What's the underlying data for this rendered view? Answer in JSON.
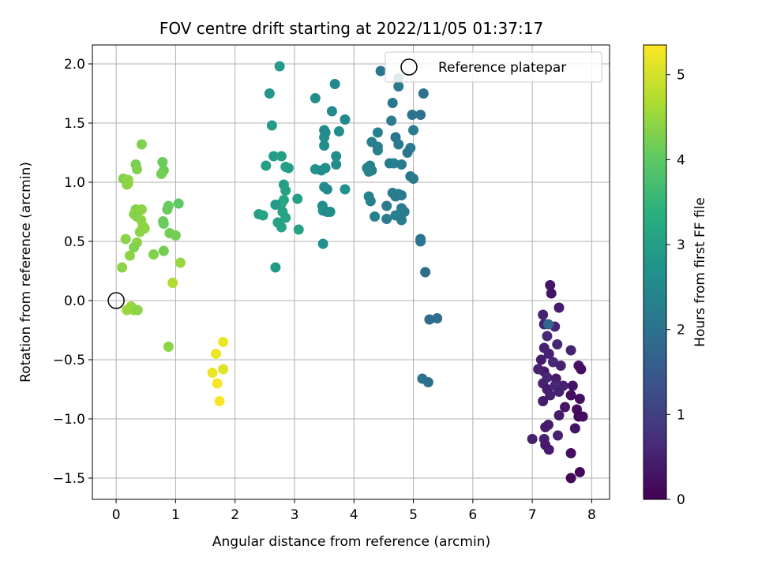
{
  "chart_data": {
    "type": "scatter",
    "title": "FOV centre drift starting at 2022/11/05 01:37:17",
    "xlabel": "Angular distance from reference (arcmin)",
    "ylabel": "Rotation from reference (arcmin)",
    "xlim": [
      -0.4,
      8.3
    ],
    "ylim": [
      -1.68,
      2.16
    ],
    "xticks": [
      0,
      1,
      2,
      3,
      4,
      5,
      6,
      7,
      8
    ],
    "yticks": [
      -1.5,
      -1.0,
      -0.5,
      0.0,
      0.5,
      1.0,
      1.5,
      2.0
    ],
    "ytick_labels": [
      "−1.5",
      "−1.0",
      "−0.5",
      "0.0",
      "0.5",
      "1.0",
      "1.5",
      "2.0"
    ],
    "grid": true,
    "legend": {
      "position": "top-right",
      "entries": [
        "Reference platepar"
      ]
    },
    "reference_point": {
      "x": 0,
      "y": 0
    },
    "colorbar": {
      "label": "Hours from first FF file",
      "colormap": "viridis",
      "range": [
        0,
        5.35
      ],
      "ticks": [
        0,
        1,
        2,
        3,
        4,
        5
      ]
    },
    "points": [
      {
        "x": 7.3,
        "y": 0.13,
        "h": 0.3
      },
      {
        "x": 7.32,
        "y": 0.06,
        "h": 0.3
      },
      {
        "x": 7.45,
        "y": -0.06,
        "h": 0.4
      },
      {
        "x": 7.18,
        "y": -0.12,
        "h": 0.5
      },
      {
        "x": 7.38,
        "y": -0.22,
        "h": 0.6
      },
      {
        "x": 7.2,
        "y": -0.2,
        "h": 0.5
      },
      {
        "x": 7.25,
        "y": -0.3,
        "h": 0.6
      },
      {
        "x": 7.2,
        "y": -0.4,
        "h": 0.5
      },
      {
        "x": 7.42,
        "y": -0.37,
        "h": 0.6
      },
      {
        "x": 7.65,
        "y": -0.42,
        "h": 0.5
      },
      {
        "x": 7.15,
        "y": -0.5,
        "h": 0.4
      },
      {
        "x": 7.28,
        "y": -0.45,
        "h": 0.5
      },
      {
        "x": 7.35,
        "y": -0.52,
        "h": 0.6
      },
      {
        "x": 7.48,
        "y": -0.55,
        "h": 0.5
      },
      {
        "x": 7.2,
        "y": -0.6,
        "h": 0.4
      },
      {
        "x": 7.1,
        "y": -0.58,
        "h": 0.5
      },
      {
        "x": 7.25,
        "y": -0.65,
        "h": 0.6
      },
      {
        "x": 7.4,
        "y": -0.66,
        "h": 0.4
      },
      {
        "x": 7.52,
        "y": -0.72,
        "h": 0.5
      },
      {
        "x": 7.78,
        "y": -0.55,
        "h": 0.3
      },
      {
        "x": 7.82,
        "y": -0.58,
        "h": 0.2
      },
      {
        "x": 7.18,
        "y": -0.7,
        "h": 0.5
      },
      {
        "x": 7.25,
        "y": -0.75,
        "h": 0.4
      },
      {
        "x": 7.38,
        "y": -0.72,
        "h": 0.6
      },
      {
        "x": 7.68,
        "y": -0.72,
        "h": 0.3
      },
      {
        "x": 7.45,
        "y": -0.77,
        "h": 0.5
      },
      {
        "x": 7.3,
        "y": -0.8,
        "h": 0.5
      },
      {
        "x": 7.18,
        "y": -0.85,
        "h": 0.4
      },
      {
        "x": 7.65,
        "y": -0.8,
        "h": 0.2
      },
      {
        "x": 7.8,
        "y": -0.83,
        "h": 0.2
      },
      {
        "x": 7.55,
        "y": -0.9,
        "h": 0.3
      },
      {
        "x": 7.45,
        "y": -0.97,
        "h": 0.4
      },
      {
        "x": 7.75,
        "y": -0.92,
        "h": 0.2
      },
      {
        "x": 7.78,
        "y": -0.98,
        "h": 0.1
      },
      {
        "x": 7.85,
        "y": -0.98,
        "h": 0.2
      },
      {
        "x": 7.27,
        "y": -1.05,
        "h": 0.4
      },
      {
        "x": 7.22,
        "y": -1.07,
        "h": 0.4
      },
      {
        "x": 7.72,
        "y": -1.08,
        "h": 0.3
      },
      {
        "x": 7.43,
        "y": -1.14,
        "h": 0.5
      },
      {
        "x": 7.0,
        "y": -1.17,
        "h": 0.5
      },
      {
        "x": 7.2,
        "y": -1.17,
        "h": 0.5
      },
      {
        "x": 7.22,
        "y": -1.22,
        "h": 0.4
      },
      {
        "x": 7.28,
        "y": -1.26,
        "h": 0.4
      },
      {
        "x": 7.65,
        "y": -1.29,
        "h": 0.2
      },
      {
        "x": 7.8,
        "y": -1.45,
        "h": 0.1
      },
      {
        "x": 7.65,
        "y": -1.5,
        "h": 0.1
      },
      {
        "x": 7.27,
        "y": -0.2,
        "h": 1.8
      },
      {
        "x": 4.45,
        "y": 1.94,
        "h": 2.1
      },
      {
        "x": 4.75,
        "y": 1.88,
        "h": 2.0
      },
      {
        "x": 4.75,
        "y": 1.81,
        "h": 2.2
      },
      {
        "x": 5.17,
        "y": 1.75,
        "h": 2.0
      },
      {
        "x": 4.65,
        "y": 1.67,
        "h": 2.1
      },
      {
        "x": 4.98,
        "y": 1.57,
        "h": 2.1
      },
      {
        "x": 5.12,
        "y": 1.57,
        "h": 2.0
      },
      {
        "x": 4.63,
        "y": 1.52,
        "h": 2.2
      },
      {
        "x": 5.0,
        "y": 1.44,
        "h": 2.2
      },
      {
        "x": 4.4,
        "y": 1.42,
        "h": 2.3
      },
      {
        "x": 4.7,
        "y": 1.38,
        "h": 2.1
      },
      {
        "x": 4.3,
        "y": 1.34,
        "h": 2.3
      },
      {
        "x": 4.75,
        "y": 1.32,
        "h": 2.2
      },
      {
        "x": 4.4,
        "y": 1.3,
        "h": 2.2
      },
      {
        "x": 4.95,
        "y": 1.29,
        "h": 2.2
      },
      {
        "x": 4.4,
        "y": 1.27,
        "h": 2.3
      },
      {
        "x": 4.9,
        "y": 1.25,
        "h": 2.1
      },
      {
        "x": 4.6,
        "y": 1.16,
        "h": 2.2
      },
      {
        "x": 4.67,
        "y": 1.16,
        "h": 2.3
      },
      {
        "x": 4.8,
        "y": 1.15,
        "h": 2.2
      },
      {
        "x": 4.27,
        "y": 1.14,
        "h": 2.3
      },
      {
        "x": 4.22,
        "y": 1.12,
        "h": 2.4
      },
      {
        "x": 4.3,
        "y": 1.1,
        "h": 2.3
      },
      {
        "x": 4.25,
        "y": 1.09,
        "h": 2.4
      },
      {
        "x": 4.95,
        "y": 1.05,
        "h": 2.1
      },
      {
        "x": 5.0,
        "y": 1.03,
        "h": 2.2
      },
      {
        "x": 4.65,
        "y": 0.91,
        "h": 2.2
      },
      {
        "x": 4.75,
        "y": 0.9,
        "h": 2.3
      },
      {
        "x": 4.7,
        "y": 0.88,
        "h": 2.2
      },
      {
        "x": 4.8,
        "y": 0.89,
        "h": 2.2
      },
      {
        "x": 4.25,
        "y": 0.88,
        "h": 2.3
      },
      {
        "x": 4.28,
        "y": 0.84,
        "h": 2.3
      },
      {
        "x": 4.55,
        "y": 0.8,
        "h": 2.2
      },
      {
        "x": 4.8,
        "y": 0.78,
        "h": 2.2
      },
      {
        "x": 4.85,
        "y": 0.75,
        "h": 2.2
      },
      {
        "x": 4.7,
        "y": 0.72,
        "h": 2.3
      },
      {
        "x": 4.35,
        "y": 0.71,
        "h": 2.3
      },
      {
        "x": 4.55,
        "y": 0.69,
        "h": 2.2
      },
      {
        "x": 4.8,
        "y": 0.68,
        "h": 2.2
      },
      {
        "x": 5.12,
        "y": 0.52,
        "h": 2.0
      },
      {
        "x": 5.12,
        "y": 0.5,
        "h": 2.1
      },
      {
        "x": 5.2,
        "y": 0.24,
        "h": 1.9
      },
      {
        "x": 5.4,
        "y": -0.15,
        "h": 1.9
      },
      {
        "x": 5.27,
        "y": -0.16,
        "h": 1.9
      },
      {
        "x": 5.15,
        "y": -0.66,
        "h": 2.0
      },
      {
        "x": 5.25,
        "y": -0.69,
        "h": 2.0
      },
      {
        "x": 2.75,
        "y": 1.98,
        "h": 2.9
      },
      {
        "x": 3.68,
        "y": 1.83,
        "h": 2.5
      },
      {
        "x": 2.58,
        "y": 1.75,
        "h": 2.8
      },
      {
        "x": 3.35,
        "y": 1.71,
        "h": 2.6
      },
      {
        "x": 3.63,
        "y": 1.6,
        "h": 2.5
      },
      {
        "x": 3.85,
        "y": 1.53,
        "h": 2.5
      },
      {
        "x": 2.62,
        "y": 1.48,
        "h": 2.9
      },
      {
        "x": 3.5,
        "y": 1.44,
        "h": 2.6
      },
      {
        "x": 3.52,
        "y": 1.42,
        "h": 2.5
      },
      {
        "x": 3.75,
        "y": 1.43,
        "h": 2.6
      },
      {
        "x": 3.5,
        "y": 1.38,
        "h": 2.6
      },
      {
        "x": 3.5,
        "y": 1.31,
        "h": 2.6
      },
      {
        "x": 2.65,
        "y": 1.22,
        "h": 2.9
      },
      {
        "x": 2.78,
        "y": 1.22,
        "h": 3.0
      },
      {
        "x": 3.7,
        "y": 1.22,
        "h": 2.6
      },
      {
        "x": 3.7,
        "y": 1.15,
        "h": 2.6
      },
      {
        "x": 2.52,
        "y": 1.14,
        "h": 3.0
      },
      {
        "x": 2.85,
        "y": 1.13,
        "h": 3.1
      },
      {
        "x": 2.9,
        "y": 1.12,
        "h": 3.0
      },
      {
        "x": 3.35,
        "y": 1.11,
        "h": 2.7
      },
      {
        "x": 3.45,
        "y": 1.1,
        "h": 2.6
      },
      {
        "x": 3.52,
        "y": 1.12,
        "h": 2.6
      },
      {
        "x": 2.82,
        "y": 0.98,
        "h": 3.0
      },
      {
        "x": 3.5,
        "y": 0.96,
        "h": 2.6
      },
      {
        "x": 3.55,
        "y": 0.94,
        "h": 2.5
      },
      {
        "x": 3.85,
        "y": 0.94,
        "h": 2.7
      },
      {
        "x": 2.85,
        "y": 0.93,
        "h": 3.1
      },
      {
        "x": 3.05,
        "y": 0.86,
        "h": 3.0
      },
      {
        "x": 2.82,
        "y": 0.85,
        "h": 3.1
      },
      {
        "x": 2.78,
        "y": 0.82,
        "h": 3.2
      },
      {
        "x": 2.68,
        "y": 0.81,
        "h": 2.9
      },
      {
        "x": 3.47,
        "y": 0.8,
        "h": 2.6
      },
      {
        "x": 3.48,
        "y": 0.76,
        "h": 2.7
      },
      {
        "x": 3.55,
        "y": 0.75,
        "h": 2.5
      },
      {
        "x": 3.6,
        "y": 0.75,
        "h": 2.6
      },
      {
        "x": 2.8,
        "y": 0.75,
        "h": 3.1
      },
      {
        "x": 2.4,
        "y": 0.73,
        "h": 3.0
      },
      {
        "x": 2.47,
        "y": 0.72,
        "h": 3.1
      },
      {
        "x": 2.85,
        "y": 0.7,
        "h": 3.1
      },
      {
        "x": 2.72,
        "y": 0.66,
        "h": 3.1
      },
      {
        "x": 2.78,
        "y": 0.62,
        "h": 3.1
      },
      {
        "x": 3.07,
        "y": 0.6,
        "h": 3.1
      },
      {
        "x": 3.48,
        "y": 0.48,
        "h": 2.7
      },
      {
        "x": 2.68,
        "y": 0.28,
        "h": 2.9
      },
      {
        "x": 0.43,
        "y": 1.32,
        "h": 4.3
      },
      {
        "x": 0.78,
        "y": 1.17,
        "h": 4.1
      },
      {
        "x": 0.33,
        "y": 1.15,
        "h": 4.2
      },
      {
        "x": 0.35,
        "y": 1.11,
        "h": 4.3
      },
      {
        "x": 0.8,
        "y": 1.1,
        "h": 4.1
      },
      {
        "x": 0.76,
        "y": 1.07,
        "h": 4.2
      },
      {
        "x": 0.12,
        "y": 1.03,
        "h": 4.3
      },
      {
        "x": 0.2,
        "y": 1.02,
        "h": 4.4
      },
      {
        "x": 0.2,
        "y": 0.99,
        "h": 4.4
      },
      {
        "x": 0.18,
        "y": 0.98,
        "h": 4.4
      },
      {
        "x": 1.05,
        "y": 0.82,
        "h": 4.0
      },
      {
        "x": 0.88,
        "y": 0.8,
        "h": 4.1
      },
      {
        "x": 0.86,
        "y": 0.77,
        "h": 4.1
      },
      {
        "x": 0.33,
        "y": 0.77,
        "h": 4.3
      },
      {
        "x": 0.43,
        "y": 0.77,
        "h": 4.4
      },
      {
        "x": 0.3,
        "y": 0.73,
        "h": 4.4
      },
      {
        "x": 0.35,
        "y": 0.71,
        "h": 4.3
      },
      {
        "x": 0.42,
        "y": 0.68,
        "h": 4.4
      },
      {
        "x": 0.79,
        "y": 0.67,
        "h": 4.1
      },
      {
        "x": 0.8,
        "y": 0.65,
        "h": 4.1
      },
      {
        "x": 0.45,
        "y": 0.63,
        "h": 4.4
      },
      {
        "x": 0.48,
        "y": 0.61,
        "h": 4.4
      },
      {
        "x": 0.4,
        "y": 0.58,
        "h": 4.4
      },
      {
        "x": 0.9,
        "y": 0.57,
        "h": 4.2
      },
      {
        "x": 1.0,
        "y": 0.55,
        "h": 4.2
      },
      {
        "x": 0.16,
        "y": 0.52,
        "h": 4.4
      },
      {
        "x": 0.35,
        "y": 0.49,
        "h": 4.4
      },
      {
        "x": 0.3,
        "y": 0.45,
        "h": 4.3
      },
      {
        "x": 0.8,
        "y": 0.42,
        "h": 4.2
      },
      {
        "x": 0.63,
        "y": 0.39,
        "h": 4.3
      },
      {
        "x": 0.23,
        "y": 0.38,
        "h": 4.4
      },
      {
        "x": 1.08,
        "y": 0.32,
        "h": 4.5
      },
      {
        "x": 0.1,
        "y": 0.28,
        "h": 4.4
      },
      {
        "x": 0.95,
        "y": 0.15,
        "h": 4.7
      },
      {
        "x": 0.25,
        "y": -0.05,
        "h": 4.5
      },
      {
        "x": 0.3,
        "y": -0.08,
        "h": 4.5
      },
      {
        "x": 0.18,
        "y": -0.08,
        "h": 4.5
      },
      {
        "x": 0.36,
        "y": -0.08,
        "h": 4.4
      },
      {
        "x": 0.88,
        "y": -0.39,
        "h": 4.4
      },
      {
        "x": 1.8,
        "y": -0.35,
        "h": 5.2
      },
      {
        "x": 1.68,
        "y": -0.45,
        "h": 5.2
      },
      {
        "x": 1.8,
        "y": -0.58,
        "h": 5.1
      },
      {
        "x": 1.62,
        "y": -0.61,
        "h": 5.2
      },
      {
        "x": 1.7,
        "y": -0.7,
        "h": 5.3
      },
      {
        "x": 1.74,
        "y": -0.85,
        "h": 5.3
      }
    ]
  },
  "colors": {
    "grid": "#b0b0b0",
    "axis": "#000000"
  }
}
